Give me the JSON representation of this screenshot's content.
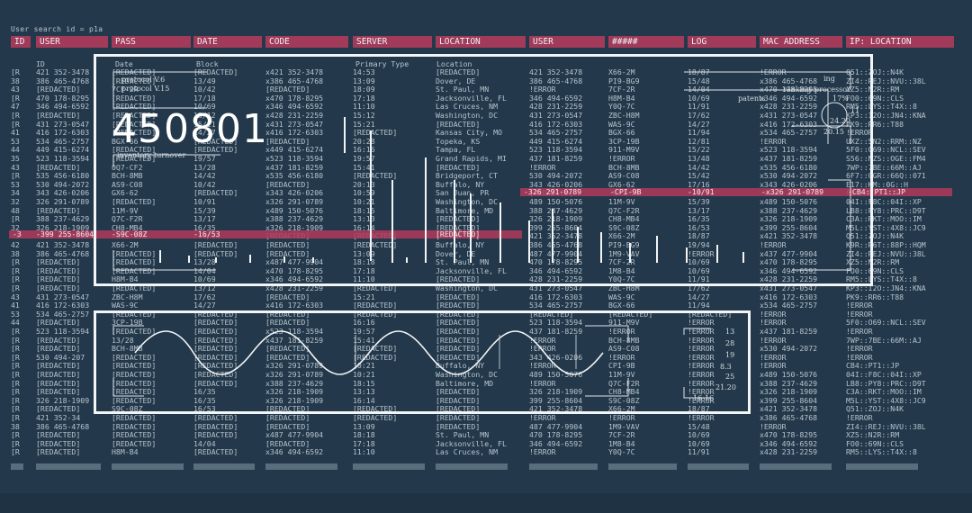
{
  "top_bar": {
    "text": "User search id = p1a"
  },
  "headers": [
    "ID",
    "USER",
    "PASS",
    "DATE",
    "CODE",
    "SERVER",
    "LOCATION",
    "USER",
    "#####",
    "LOG",
    "MAC ADDRESS",
    "IP: LOCATION"
  ],
  "sub_headers": [
    "ID",
    "Date",
    "Block",
    "Primary Type",
    "Location"
  ],
  "rows": [
    [
      "[R",
      "421 352-3478",
      "[REDACTED]",
      "[REDACTED]",
      "x421 352-3478",
      "14:53",
      "[REDACTED]",
      "421 352-3478",
      "X66-2M",
      "18/87",
      "!ERROR",
      "Q51::ZOJ::N4K"
    ],
    [
      "38",
      "386 465-4768",
      "[REDACTED]",
      "13/49",
      "x386 465-4768",
      "13:09",
      "Dover, DE",
      "386 465-4768",
      "PI9-BG9",
      "15/48",
      "x386 465-4768",
      "ZI4::REJ::NVU::38L"
    ],
    [
      "43",
      "[REDACTED]",
      "7CF-2R",
      "10/42",
      "[REDACTED]",
      "18:09",
      "St. Paul, MN",
      "!ERROR",
      "7CF-2R",
      "14/04",
      "x470 178-8295",
      "XZ5::N2R::RM"
    ],
    [
      "[R",
      "470 178-8295",
      "[REDACTED]",
      "17/18",
      "x470 178-8295",
      "17:18",
      "Jacksonville, FL",
      "346 494-6592",
      "H8M-B4",
      "10/69",
      "x346 494-6592",
      "FO0::69N::CLS"
    ],
    [
      "47",
      "346 494-6592",
      "[REDACTED]",
      "10/69",
      "x346 494-6592",
      "11:10",
      "Las Cruces, NM",
      "428 231-2259",
      "Y0Q-7C",
      "11/91",
      "x428 231-2259",
      "RM5::LYS::T4X::8"
    ],
    [
      "[R",
      "[REDACTED]",
      "[REDACTED]",
      "13/12",
      "x428 231-2259",
      "15:12",
      "Washington, DC",
      "431 273-0547",
      "ZBC-H8M",
      "17/62",
      "x431 273-0547",
      "KP3::I2O::JN4::KNA"
    ],
    [
      "[R",
      "431 273-0547",
      "[REDACTED]",
      "15/21",
      "x431 273-0547",
      "15:21",
      "[REDACTED]",
      "416 172-6303",
      "WAS-9C",
      "14/27",
      "x416 172-6303",
      "PK9::RR6::T88"
    ],
    [
      "41",
      "416 172-6303",
      "[REDACTED]",
      "14/27",
      "x416 172-6303",
      "[REDACTED]",
      "Kansas City, MO",
      "534 465-2757",
      "BGX-66",
      "11/94",
      "x534 465-2757",
      "!ERROR"
    ],
    [
      "53",
      "534 465-2757",
      "BGX-66",
      "[REDACTED]",
      "[REDACTED]",
      "20:28",
      "Topeka, KS",
      "449 415-6274",
      "3CP-19B",
      "12/81",
      "!ERROR",
      "UXZ::5N2::RRM::NZ"
    ],
    [
      "44",
      "449 415-6274",
      "[REDACTED]",
      "[REDACTED]",
      "x449 415-6274",
      "16:16",
      "Tampa, FL",
      "523 118-3594",
      "911-M9V",
      "15/22",
      "x523 118-3594",
      "5F0::O69::NCL::SEV"
    ],
    [
      "35",
      "523 118-3594",
      "[REDACTED]",
      "19/57",
      "x523 118-3594",
      "19:57",
      "Grand Rapids, MI",
      "437 181-8259",
      "!ERROR",
      "13/48",
      "x437 181-8259",
      "S56::NZS::OGE::FM4"
    ],
    [
      "43",
      "[REDACTED]",
      "0Q7-CF2",
      "13/28",
      "x437 181-8259",
      "15:41",
      "[REDACTED]",
      "!ERROR",
      "BCH-8MB",
      "14/42",
      "x535 456-6180",
      "7WP::7BE::66M::AJ"
    ],
    [
      "[R",
      "535 456-6180",
      "BCH-8MB",
      "14/42",
      "x535 456-6180",
      "[REDACTED]",
      "Bridgeport, CT",
      "530 494-2072",
      "AS9-C08",
      "15/42",
      "x530 494-2072",
      "6F7::OGR::66Q::071"
    ],
    [
      "53",
      "530 494-2072",
      "AS9-C08",
      "10/42",
      "[REDACTED]",
      "20:13",
      "Buffalo, NY",
      "343 426-0206",
      "GX6-62",
      "17/16",
      "x343 426-0206",
      "E17::KM::0G::H"
    ],
    [
      "34",
      "343 426-0206",
      "GX6-62",
      "[REDACTED]",
      "x343 426-0206",
      "10:59",
      "San Juan, PR",
      "[REDACTED]",
      "-CPI-9B",
      "-10/91",
      "-x326 291-0789",
      "CB4::PT1::JP"
    ],
    [
      "32",
      "326 291-0789",
      "[REDACTED]",
      "10/91",
      "x326 291-0789",
      "10:21",
      "Washington, DC",
      "489 150-5076",
      "11M-9V",
      "15/39",
      "x489 150-5076",
      "04I::F8C::04I::XP"
    ],
    [
      "48",
      "[REDACTED]",
      "11M-9V",
      "15/39",
      "x489 150-5076",
      "18:15",
      "Baltimore, MD",
      "388 237-4629",
      "Q7C-F2R",
      "13/17",
      "x388 237-4629",
      "LB8::PY8::PRC::D9T"
    ],
    [
      "[R",
      "388 237-4629",
      "Q7C-F2R",
      "13/17",
      "x388 237-4629",
      "13:13",
      "[REDACTED]",
      "326 218-1909",
      "CH8-MB4",
      "16/35",
      "x326 218-1909",
      "C3A::RKT::MOO::IM"
    ],
    [
      "32",
      "326 218-1909",
      "CH8-MB4",
      "16/35",
      "x326 218-1909",
      "16:14",
      "[REDACTED]",
      "399 255-8604",
      "S9C-08Z",
      "16/53",
      "x399 255-8604",
      "M5L::YST::4X8::JC9"
    ],
    [
      "-3",
      "-399 255-8604",
      "-S9C-08Z",
      "-16/53",
      "[REDACTED]",
      "[REDACTED]",
      "[REDACTED]",
      "421 352-3478",
      "X66-2M",
      "18/87",
      "x421 352-3478",
      "Q51::ZOJ::N4K"
    ],
    [
      "42",
      "421 352-3478",
      "X66-2M",
      "[REDACTED]",
      "[REDACTED]",
      "[REDACTED]",
      "Buffalo, NY",
      "386 465-4768",
      "PI9-BG9",
      "19/94",
      "!ERROR",
      "K9R::R6T::88P::HQM"
    ],
    [
      "38",
      "386 465-4768",
      "[REDACTED]",
      "[REDACTED]",
      "[REDACTED]",
      "13:09",
      "Dover, DE",
      "487 477-9904",
      "1M9-VAV",
      "!ERROR",
      "x437 477-9904",
      "ZI4::REJ::NVU::38L"
    ],
    [
      "[R",
      "[REDACTED]",
      "[REDACTED]",
      "13/28",
      "x487 477-9904",
      "18:18",
      "St. Paul, MN",
      "470 178-8295",
      "7CF-2R",
      "10/69",
      "x470 178-8295",
      "XZ5::N2R::RM"
    ],
    [
      "[R",
      "[REDACTED]",
      "[REDACTED]",
      "14/04",
      "x470 178-8295",
      "17:18",
      "Jacksonville, FL",
      "346 494-6592",
      "1M8-B4",
      "10/69",
      "x346 494-6592",
      "FO0::69N::CLS"
    ],
    [
      "[R",
      "[REDACTED]",
      "H8M-B4",
      "10/69",
      "x346 494-6592",
      "11:10",
      "[REDACTED]",
      "428 231-2259",
      "Y0Q-7C",
      "11/91",
      "x428 231-2259",
      "RM5::LYS::T4X::8"
    ],
    [
      "[R",
      "[REDACTED]",
      "[REDACTED]",
      "13/12",
      "x428 231-2259",
      "[REDACTED]",
      "Washington, DC",
      "431 273-0547",
      "ZBC-H8M",
      "17/62",
      "x431 273-0547",
      "KP3::I2O::JN4::KNA"
    ],
    [
      "43",
      "431 273-0547",
      "ZBC-H8M",
      "17/62",
      "[REDACTED]",
      "15:21",
      "[REDACTED]",
      "416 172-6303",
      "WAS-9C",
      "14/27",
      "x416 172-6303",
      "PK9::RR6::T88"
    ],
    [
      "41",
      "416 172-6303",
      "WAS-9C",
      "14/27",
      "x416 172-6303",
      "[REDACTED]",
      "[REDACTED]",
      "534 465-2757",
      "BGX-66",
      "11/94",
      "x534 465-2757",
      "!ERROR"
    ],
    [
      "53",
      "534 465-2757",
      "[REDACTED]",
      "[REDACTED]",
      "[REDACTED]",
      "[REDACTED]",
      "[REDACTED]",
      "[REDACTED]",
      "[REDACTED]",
      "[REDACTED]",
      "!ERROR",
      "!ERROR"
    ],
    [
      "44",
      "[REDACTED]",
      "3CP-19B",
      "[REDACTED]",
      "[REDACTED]",
      "16:16",
      "[REDACTED]",
      "523 118-3594",
      "911-M9V",
      "!ERROR",
      "!ERROR",
      "5F0::O69::NCL::SEV"
    ],
    [
      "[R",
      "523 118-3594",
      "[REDACTED]",
      "[REDACTED]",
      "x523 118-3594",
      "19:57",
      "[REDACTED]",
      "437 181-8259",
      "!ERROR",
      "!ERROR",
      "x437 181-8259",
      "!ERROR"
    ],
    [
      "[R",
      "[REDACTED]",
      "13/28",
      "[REDACTED]",
      "x437 181-8259",
      "15:41",
      "[REDACTED]",
      "!ERROR",
      "BCH-8MB",
      "!ERROR",
      "!ERROR",
      "7WP::7BE::66M::AJ"
    ],
    [
      "[R",
      "[REDACTED]",
      "BCH-8MB",
      "[REDACTED]",
      "[REDACTED]",
      "[REDACTED]",
      "[REDACTED]",
      "!ERROR",
      "AS9-C08",
      "!ERROR",
      "x530 494-2072",
      "!ERROR"
    ],
    [
      "[R",
      "530 494-207",
      "[REDACTED]",
      "[REDACTED]",
      "[REDACTED]",
      "[REDACTED]",
      "[REDACTED]",
      "343 426-0206",
      "!ERROR",
      "!ERROR",
      "!ERROR",
      "!ERROR"
    ],
    [
      "[R",
      "[REDACTED]",
      "[REDACTED]",
      "[REDACTED]",
      "x326 291-0789",
      "10:21",
      "Buffalo, NY",
      "!ERROR",
      "CPI-9B",
      "!ERROR",
      "!ERROR",
      "CB4::PT1::JP"
    ],
    [
      "[R",
      "[REDACTED]",
      "[REDACTED]",
      "[REDACTED]",
      "x326 291-0789",
      "10:21",
      "Washington, DC",
      "489 150-5076",
      "11M-9V",
      "!ERROR",
      "x489 150-5076",
      "04I::F8C::04I::XP"
    ],
    [
      "[R",
      "[REDACTED]",
      "[REDACTED]",
      "[REDACTED]",
      "x388 237-4629",
      "18:15",
      "Baltimore, MD",
      "!ERROR",
      "Q7C-F2R",
      "!ERROR",
      "x388 237-4629",
      "LB8::PY8::PRC::D9T"
    ],
    [
      "[R",
      "[REDACTED]",
      "[REDACTED]",
      "16/35",
      "x326 218-1909",
      "13:13",
      "[REDACTED]",
      "326 218-1909",
      "CH8-MB4",
      "!ERROR",
      "x326 218-1909",
      "C3A::RKT::MOO::IM"
    ],
    [
      "[R",
      "326 218-1909",
      "[REDACTED]",
      "16/35",
      "x326 218-1909",
      "16:14",
      "[REDACTED]",
      "399 255-8604",
      "S9C-08Z",
      "!ERROR",
      "x399 255-8604",
      "M5L::YST::4X8::JC9"
    ],
    [
      "[R",
      "[REDACTED]",
      "S9C-08Z",
      "16/53",
      "[REDACTED]",
      "[REDACTED]",
      "[REDACTED]",
      "421 352-3478",
      "X66-2M",
      "18/87",
      "x421 352-3478",
      "Q51::ZOJ::N4K"
    ],
    [
      "[R",
      "421 352-34",
      "[REDACTED]",
      "[REDACTED]",
      "[REDACTED]",
      "[REDACTED]",
      "[REDACTED]",
      "!ERROR",
      "!ERROR",
      "!ERROR",
      "x386 465-4768",
      "!ERROR"
    ],
    [
      "38",
      "386 465-4768",
      "[REDACTED]",
      "[REDACTED]",
      "[REDACTED]",
      "13:09",
      "[REDACTED]",
      "487 477-9904",
      "1M9-VAV",
      "15/48",
      "!ERROR",
      "ZI4::REJ::NVU::38L"
    ],
    [
      "[R",
      "[REDACTED]",
      "[REDACTED]",
      "[REDACTED]",
      "x487 477-9904",
      "18:18",
      "St. Paul, MN",
      "470 178-8295",
      "7CF-2R",
      "10/69",
      "x470 178-8295",
      "XZ5::N2R::RM"
    ],
    [
      "[R",
      "[REDACTED]",
      "[REDACTED]",
      "14/04",
      "[REDACTED]",
      "17:18",
      "Jacksonville, FL",
      "346 494-6592",
      "1M8-B4",
      "10/69",
      "x346 494-6592",
      "FO0::69N::CLS"
    ],
    [
      "[R",
      "[REDACTED]",
      "H8M-B4",
      "[REDACTED]",
      "x346 494-6592",
      "11:10",
      "Las Cruces, NM",
      "!ERROR",
      "Y0Q-7C",
      "11/91",
      "x428 231-2259",
      "RM5::LYS::T4X::8"
    ]
  ],
  "highlight_rows": [
    {
      "cells": [
        "-326 291-0789",
        "-CPI-9B",
        "-10/91",
        "-x326 291-0789",
        "-CB4::PT1::JP"
      ]
    },
    {
      "cells": [
        "-3",
        "-399 255-8604",
        "-S9C-08Z",
        "-16/53",
        "[REDACTED]"
      ]
    }
  ],
  "big_number": "450801",
  "overlay_top": {
    "labels": [
      "protocol V.6",
      "protocol V.15",
      "patents",
      "ranking",
      "ing",
      "processor",
      "24.20",
      "20.15",
      "17%",
      "11",
      "inventory turnover"
    ]
  },
  "overlay_bottom": {
    "labels": [
      "13",
      "28",
      "19",
      "8.3",
      "25",
      "21.20",
      "16",
      "16"
    ]
  },
  "colors": {
    "background": "#23394b",
    "accent": "#a23a5a",
    "frame": "#f2f4f5"
  }
}
